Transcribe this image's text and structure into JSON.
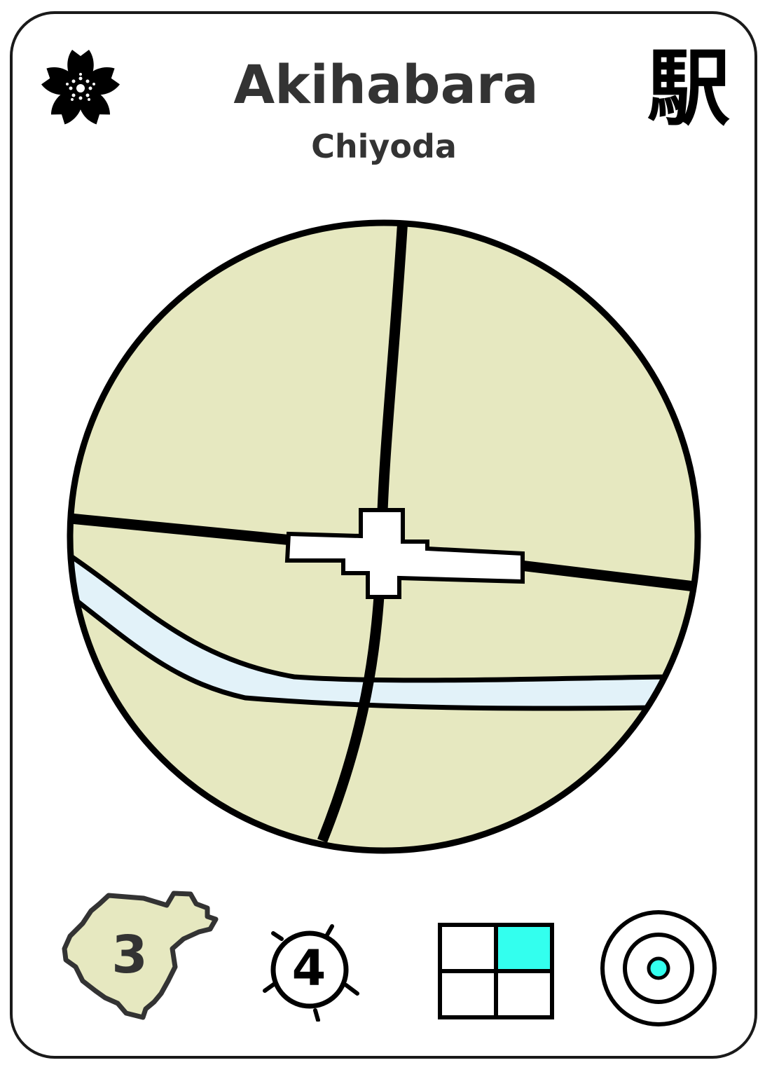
{
  "card": {
    "station_name": "Akihabara",
    "ward_name": "Chiyoda",
    "station_kanji": "駅",
    "emblem_icon": "sakura-flower-icon",
    "colors": {
      "map_land": "#e6e8c0",
      "river": "#e2f2f9",
      "accent_cyan": "#33ffee",
      "text_dark": "#333333"
    }
  },
  "stats": {
    "district_value": "3",
    "district_icon": "ward-outline-icon",
    "sun_value": "4",
    "sun_icon": "sun-icon",
    "grid_icon": "quadrant-grid-icon",
    "target_icon": "target-icon"
  }
}
